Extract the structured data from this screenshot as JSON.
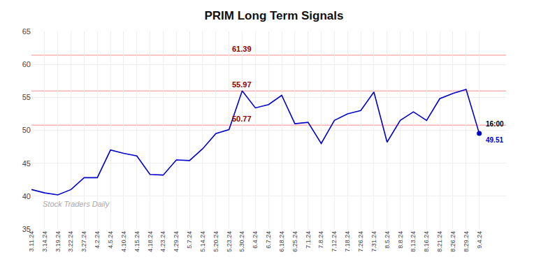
{
  "chart_data": {
    "type": "line",
    "title": "PRIM Long Term Signals",
    "categories": [
      "3.11.24",
      "3.14.24",
      "3.19.24",
      "3.22.24",
      "3.27.24",
      "4.2.24",
      "4.5.24",
      "4.10.24",
      "4.15.24",
      "4.18.24",
      "4.23.24",
      "4.29.24",
      "5.7.24",
      "5.14.24",
      "5.20.24",
      "5.23.24",
      "5.30.24",
      "6.4.24",
      "6.7.24",
      "6.18.24",
      "6.25.24",
      "7.1.24",
      "7.8.24",
      "7.12.24",
      "7.18.24",
      "7.26.24",
      "7.31.24",
      "8.5.24",
      "8.8.24",
      "8.13.24",
      "8.16.24",
      "8.21.24",
      "8.26.24",
      "8.29.24",
      "9.4.24"
    ],
    "values": [
      41.0,
      40.5,
      40.2,
      41.0,
      42.8,
      42.8,
      47.0,
      46.5,
      46.1,
      43.3,
      43.2,
      45.5,
      45.4,
      47.2,
      49.5,
      50.1,
      56.0,
      53.4,
      53.9,
      55.3,
      51.0,
      51.2,
      48.0,
      51.5,
      52.5,
      53.0,
      55.8,
      48.2,
      51.5,
      52.8,
      51.5,
      54.8,
      55.6,
      56.2,
      49.51
    ],
    "color": "#0000cc",
    "reference_lines": [
      {
        "value": 61.39,
        "color": "#ffb0b0"
      },
      {
        "value": 55.97,
        "color": "#ffb0b0"
      },
      {
        "value": 50.77,
        "color": "#ffb0b0"
      }
    ],
    "annotations": [
      {
        "text": "Stock Traders Daily"
      },
      {
        "text": "16:00"
      },
      {
        "text": "49.51"
      }
    ],
    "ylim": [
      35,
      65
    ],
    "yticks": [
      35,
      40,
      45,
      50,
      55,
      60,
      65
    ],
    "grid": true
  }
}
